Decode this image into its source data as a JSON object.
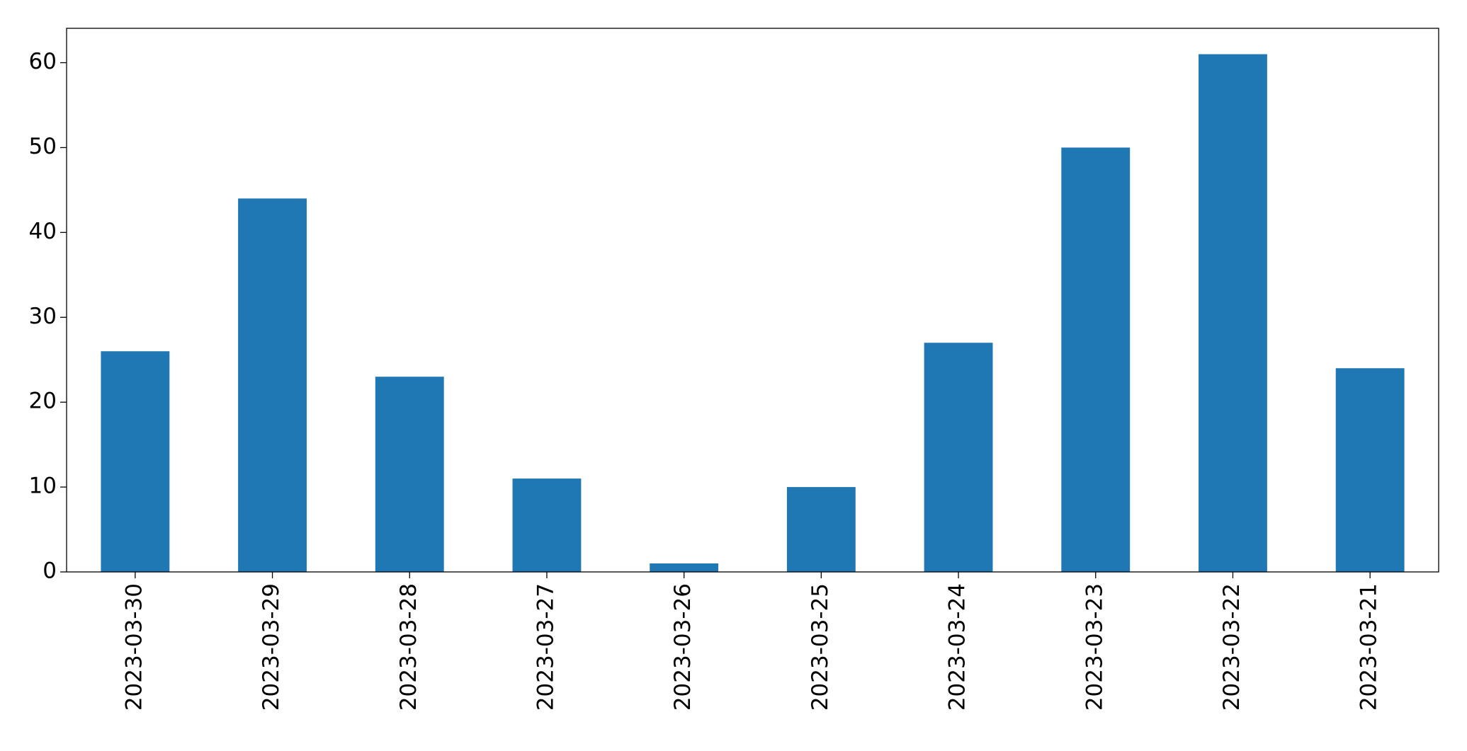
{
  "chart_data": {
    "type": "bar",
    "categories": [
      "2023-03-30",
      "2023-03-29",
      "2023-03-28",
      "2023-03-27",
      "2023-03-26",
      "2023-03-25",
      "2023-03-24",
      "2023-03-23",
      "2023-03-22",
      "2023-03-21"
    ],
    "values": [
      26,
      44,
      23,
      11,
      1,
      10,
      27,
      50,
      61,
      24
    ],
    "color": "#1f77b4",
    "ylim": [
      0,
      64.05
    ],
    "yticks": [
      0,
      10,
      20,
      30,
      40,
      50,
      60
    ],
    "grid": false
  }
}
